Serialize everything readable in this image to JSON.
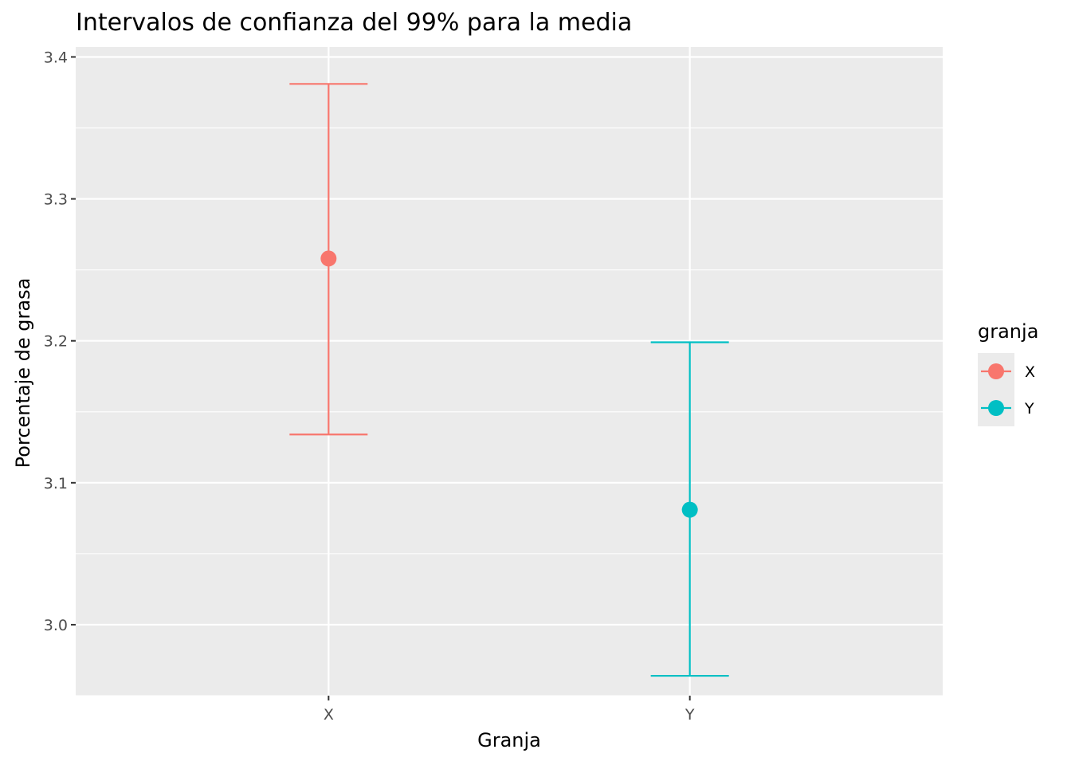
{
  "chart_data": {
    "type": "errorbar",
    "title": "Intervalos de confianza del 99% para la media",
    "xlabel": "Granja",
    "ylabel": "Porcentaje de grasa",
    "categories": [
      "X",
      "Y"
    ],
    "series": [
      {
        "category": "X",
        "mean": 3.258,
        "lower": 3.134,
        "upper": 3.381,
        "color": "#F8766D"
      },
      {
        "category": "Y",
        "mean": 3.081,
        "lower": 2.964,
        "upper": 3.199,
        "color": "#00BFC4"
      }
    ],
    "ylim": [
      2.95,
      3.407
    ],
    "y_ticks": [
      "3.0",
      "3.1",
      "3.2",
      "3.3",
      "3.4"
    ],
    "grid": true,
    "legend": {
      "title": "granja",
      "position": "right",
      "entries": [
        {
          "label": "X",
          "color": "#F8766D"
        },
        {
          "label": "Y",
          "color": "#00BFC4"
        }
      ]
    },
    "panel_background": "#EBEBEB"
  }
}
